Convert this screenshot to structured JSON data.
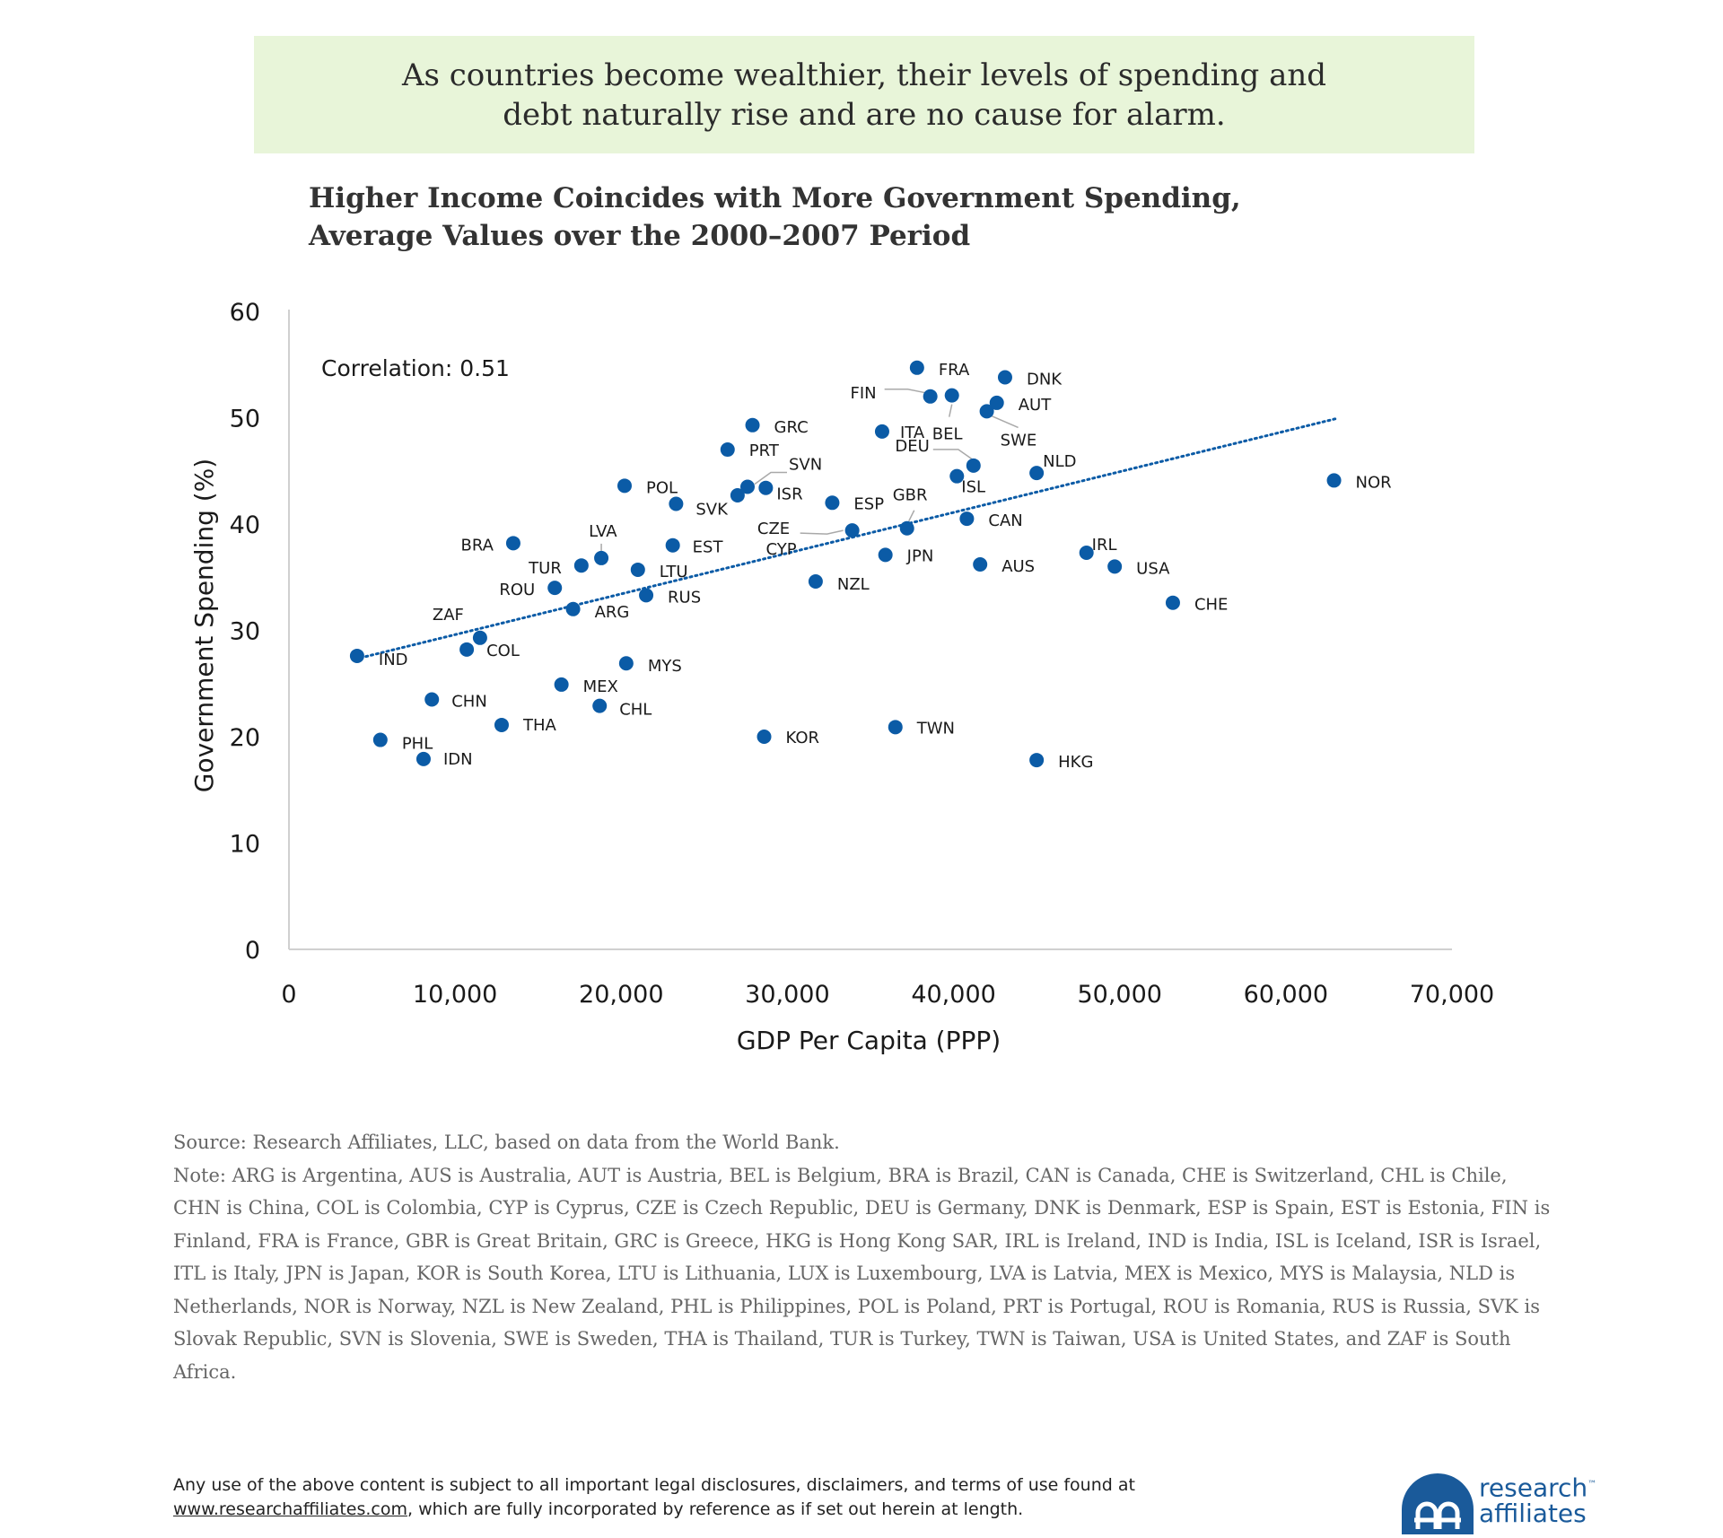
{
  "banner": {
    "text": "As countries become wealthier, their levels of spending and debt naturally rise and are no cause for alarm."
  },
  "title": {
    "line1": "Higher Income Coincides with More Government Spending,",
    "line2": "Average Values over the 2000–2007 Period"
  },
  "chart_data": {
    "type": "scatter",
    "xlabel": "GDP Per Capita (PPP)",
    "ylabel": "Government Spending (%)",
    "xlim": [
      0,
      70000
    ],
    "ylim": [
      0,
      60
    ],
    "xticks": [
      0,
      10000,
      20000,
      30000,
      40000,
      50000,
      60000,
      70000
    ],
    "xtick_labels": [
      "0",
      "10,000",
      "20,000",
      "30,000",
      "40,000",
      "50,000",
      "60,000",
      "70,000"
    ],
    "yticks": [
      0,
      10,
      20,
      30,
      40,
      50,
      60
    ],
    "ytick_labels": [
      "0",
      "10",
      "20",
      "30",
      "40",
      "50",
      "60"
    ],
    "grid": false,
    "annotation": "Correlation: 0.51",
    "trendline": {
      "style": "dotted",
      "x": [
        4000,
        63000
      ],
      "y": [
        27.3,
        49.9
      ]
    },
    "marker_color": "#0b5ba6",
    "points": [
      {
        "label": "IND",
        "x": 4100,
        "y": 27.6
      },
      {
        "label": "PHL",
        "x": 5500,
        "y": 19.7
      },
      {
        "label": "IDN",
        "x": 8100,
        "y": 17.9
      },
      {
        "label": "CHN",
        "x": 8600,
        "y": 23.5
      },
      {
        "label": "COL",
        "x": 10700,
        "y": 28.2
      },
      {
        "label": "ZAF",
        "x": 11500,
        "y": 29.3
      },
      {
        "label": "THA",
        "x": 12800,
        "y": 21.1
      },
      {
        "label": "BRA",
        "x": 13500,
        "y": 38.2
      },
      {
        "label": "ROU",
        "x": 16000,
        "y": 34.0
      },
      {
        "label": "MEX",
        "x": 16400,
        "y": 24.9
      },
      {
        "label": "ARG",
        "x": 17100,
        "y": 32.0
      },
      {
        "label": "TUR",
        "x": 17600,
        "y": 36.1
      },
      {
        "label": "LVA",
        "x": 18800,
        "y": 36.8
      },
      {
        "label": "CHL",
        "x": 18700,
        "y": 22.9
      },
      {
        "label": "POL",
        "x": 20200,
        "y": 43.6
      },
      {
        "label": "MYS",
        "x": 20300,
        "y": 26.9
      },
      {
        "label": "LTU",
        "x": 21000,
        "y": 35.7
      },
      {
        "label": "RUS",
        "x": 21500,
        "y": 33.3
      },
      {
        "label": "EST",
        "x": 23100,
        "y": 38.0
      },
      {
        "label": "SVK",
        "x": 23300,
        "y": 41.9
      },
      {
        "label": "PRT",
        "x": 26400,
        "y": 47.0
      },
      {
        "label": "SVN",
        "x": 27600,
        "y": 43.5
      },
      {
        "label": "CZE",
        "x": 27000,
        "y": 42.7
      },
      {
        "label": "GRC",
        "x": 27900,
        "y": 49.3
      },
      {
        "label": "ISR",
        "x": 28700,
        "y": 43.4
      },
      {
        "label": "KOR",
        "x": 28600,
        "y": 20.0
      },
      {
        "label": "NZL",
        "x": 31700,
        "y": 34.6
      },
      {
        "label": "ESP",
        "x": 32700,
        "y": 42.0
      },
      {
        "label": "CYP",
        "x": 33900,
        "y": 39.4
      },
      {
        "label": "ITA",
        "x": 35700,
        "y": 48.7
      },
      {
        "label": "JPN",
        "x": 35900,
        "y": 37.1
      },
      {
        "label": "TWN",
        "x": 36500,
        "y": 20.9
      },
      {
        "label": "GBR",
        "x": 37200,
        "y": 39.6
      },
      {
        "label": "FRA",
        "x": 37800,
        "y": 54.7
      },
      {
        "label": "FIN",
        "x": 38600,
        "y": 52.0
      },
      {
        "label": "BEL",
        "x": 39900,
        "y": 52.1
      },
      {
        "label": "ISL",
        "x": 40200,
        "y": 44.5
      },
      {
        "label": "CAN",
        "x": 40800,
        "y": 40.5
      },
      {
        "label": "DEU",
        "x": 41200,
        "y": 45.5
      },
      {
        "label": "AUS",
        "x": 41600,
        "y": 36.2
      },
      {
        "label": "SWE",
        "x": 42000,
        "y": 50.6
      },
      {
        "label": "AUT",
        "x": 42600,
        "y": 51.4
      },
      {
        "label": "DNK",
        "x": 43100,
        "y": 53.8
      },
      {
        "label": "NLD",
        "x": 45000,
        "y": 44.8
      },
      {
        "label": "HKG",
        "x": 45000,
        "y": 17.8
      },
      {
        "label": "IRL",
        "x": 48000,
        "y": 37.3
      },
      {
        "label": "USA",
        "x": 49700,
        "y": 36.0
      },
      {
        "label": "CHE",
        "x": 53200,
        "y": 32.6
      },
      {
        "label": "NOR",
        "x": 62900,
        "y": 44.1
      }
    ]
  },
  "source": {
    "line": "Source: Research Affiliates, LLC, based on data from the World Bank.",
    "note": "Note: ARG is Argentina, AUS is Australia, AUT is Austria, BEL is Belgium, BRA is Brazil, CAN is Canada, CHE is Switzerland, CHL is Chile, CHN is China, COL is Colombia, CYP is Cyprus, CZE is Czech Republic, DEU is Germany, DNK is Denmark, ESP is Spain, EST is Estonia, FIN is Finland, FRA is France, GBR is Great Britain, GRC is Greece, HKG is Hong Kong SAR, IRL is Ireland, IND is India, ISL is Iceland, ISR is Israel, ITL is Italy, JPN is Japan, KOR is South Korea, LTU is Lithuania, LUX is Luxembourg, LVA is Latvia, MEX is Mexico, MYS is Malaysia, NLD is Netherlands, NOR is Norway, NZL is New Zealand, PHL is Philippines, POL is Poland, PRT is Portugal, ROU is Romania, RUS is Russia, SVK is Slovak Republic, SVN is Slovenia, SWE is Sweden, THA is Thailand, TUR is Turkey, TWN is Taiwan, USA is United States, and ZAF is South Africa."
  },
  "footer": {
    "line1": "Any use of the above content is subject to all important legal disclosures, disclaimers, and terms of use found at",
    "link": "www.researchaffiliates.com",
    "line2_rest": ", which are fully incorporated by reference as if set out herein at length."
  },
  "logo": {
    "line1": "research",
    "line2": "affiliates",
    "tm": "™",
    "color": "#1a5a9a"
  }
}
